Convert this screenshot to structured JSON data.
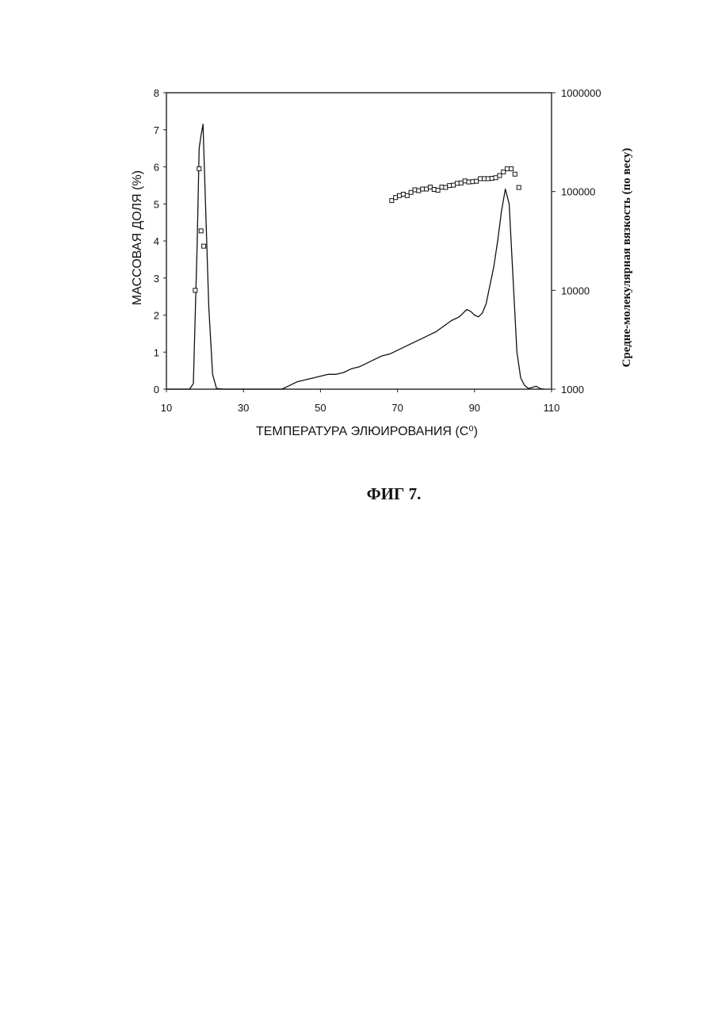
{
  "chart_data": {
    "type": "line",
    "caption": "ФИГ 7.",
    "xlabel": "ТЕМПЕРАТУРА ЭЛЮИРОВАНИЯ (С⁰)",
    "ylabel": "МАССОВАЯ ДОЛЯ (%)",
    "ylabel_right": "Средне-молекулярная вязкость (по весу)",
    "xlim": [
      10,
      110
    ],
    "ylim": [
      0,
      8
    ],
    "y2lim": [
      1000,
      1000000
    ],
    "y2_scale": "log",
    "x_ticks": [
      10,
      30,
      50,
      70,
      90,
      110
    ],
    "y_ticks": [
      0,
      1,
      2,
      3,
      4,
      5,
      6,
      7,
      8
    ],
    "y2_ticks": [
      1000,
      10000,
      100000,
      1000000
    ],
    "y2_tick_labels": [
      "1000",
      "10000",
      "100000",
      "1000000"
    ],
    "grid": false,
    "series": [
      {
        "style": "solid-line",
        "axis": "left",
        "x": [
          10,
          16,
          17,
          18,
          18.5,
          19,
          19.5,
          20,
          21,
          22,
          23,
          25,
          40,
          42,
          44,
          46,
          48,
          50,
          52,
          54,
          56,
          58,
          60,
          62,
          64,
          66,
          68,
          70,
          72,
          74,
          76,
          78,
          80,
          82,
          84,
          86,
          87,
          88,
          89,
          90,
          91,
          92,
          93,
          94,
          95,
          96,
          97,
          98,
          99,
          100,
          101,
          102,
          103,
          104,
          105,
          106,
          107,
          108
        ],
        "y": [
          0,
          0,
          0.15,
          4.0,
          6.5,
          6.85,
          7.15,
          5.5,
          2.2,
          0.4,
          0.02,
          0,
          0,
          0.1,
          0.2,
          0.25,
          0.3,
          0.35,
          0.4,
          0.4,
          0.45,
          0.55,
          0.6,
          0.7,
          0.8,
          0.9,
          0.95,
          1.05,
          1.15,
          1.25,
          1.35,
          1.45,
          1.55,
          1.7,
          1.85,
          1.95,
          2.05,
          2.15,
          2.1,
          2.0,
          1.95,
          2.05,
          2.3,
          2.8,
          3.3,
          4.0,
          4.8,
          5.4,
          5.0,
          3.0,
          1.0,
          0.3,
          0.1,
          0.02,
          0.05,
          0.08,
          0.02,
          0
        ]
      },
      {
        "style": "open-squares",
        "axis": "right",
        "x": [
          17.5,
          18.5,
          19.0,
          19.7,
          68.5,
          69.5,
          70.5,
          71.5,
          72.5,
          73.5,
          74.5,
          75.5,
          76.5,
          77.5,
          78.5,
          79.5,
          80.5,
          81.5,
          82.5,
          83.5,
          84.5,
          85.5,
          86.5,
          87.5,
          88.5,
          89.5,
          90.5,
          91.5,
          92.5,
          93.5,
          94.5,
          95.5,
          96.5,
          97.5,
          98.5,
          99.5,
          100.5,
          101.5
        ],
        "y": [
          10000,
          170000,
          40000,
          28000,
          81000,
          87000,
          91000,
          94000,
          91000,
          98000,
          104000,
          102000,
          106000,
          106000,
          111000,
          105000,
          103000,
          111000,
          110000,
          115000,
          116000,
          121000,
          122000,
          128000,
          125000,
          126000,
          127000,
          135000,
          135000,
          135000,
          136000,
          138000,
          145000,
          158000,
          170000,
          170000,
          150000,
          110000
        ]
      }
    ]
  }
}
